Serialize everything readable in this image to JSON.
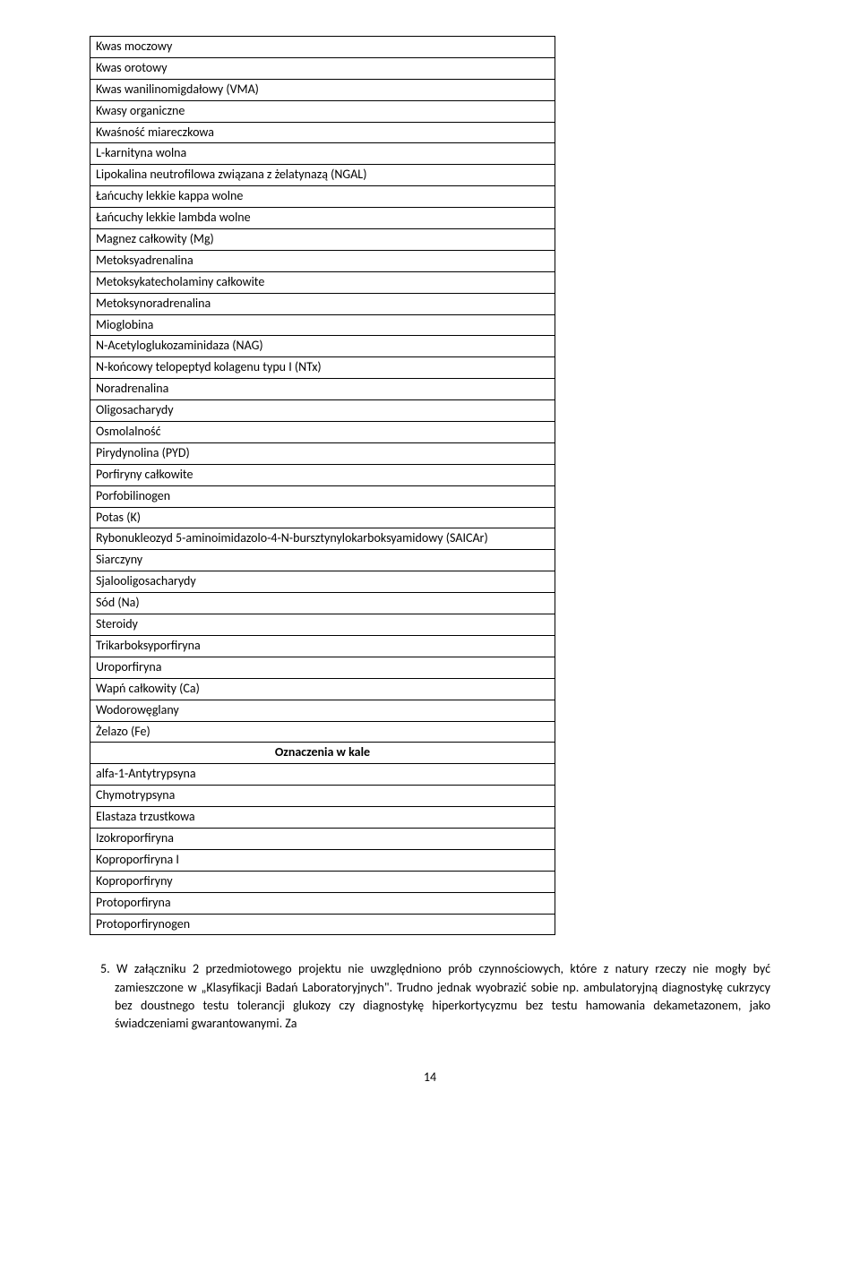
{
  "table": {
    "rows": [
      "Kwas moczowy",
      "Kwas orotowy",
      "Kwas wanilinomigdałowy (VMA)",
      "Kwasy organiczne",
      "Kwaśność miareczkowa",
      "L-karnityna wolna",
      "Lipokalina neutrofilowa związana z żelatynazą (NGAL)",
      "Łańcuchy lekkie kappa wolne",
      "Łańcuchy lekkie lambda wolne",
      "Magnez całkowity (Mg)",
      "Metoksyadrenalina",
      "Metoksykatecholaminy całkowite",
      "Metoksynoradrenalina",
      "Mioglobina",
      "N-Acetyloglukozaminidaza (NAG)",
      "N-końcowy telopeptyd kolagenu typu I (NTx)",
      "Noradrenalina",
      "Oligosacharydy",
      "Osmolalność",
      "Pirydynolina (PYD)",
      "Porfiryny całkowite",
      "Porfobilinogen",
      "Potas (K)",
      "Rybonukleozyd 5-aminoimidazolo-4-N-bursztynylokarboksyamidowy (SAICAr)",
      "Siarczyny",
      "Sjalooligosacharydy",
      "Sód (Na)",
      "Steroidy",
      "Trikarboksyporfiryna",
      "Uroporfiryna",
      "Wapń całkowity (Ca)",
      "Wodorowęglany",
      "Żelazo (Fe)"
    ],
    "section_header": "Oznaczenia w kale",
    "rows2": [
      "alfa-1-Antytrypsyna",
      "Chymotrypsyna",
      "Elastaza trzustkowa",
      "Izokroporfiryna",
      "Koproporfiryna I",
      "Koproporfiryny",
      "Protoporfiryna",
      "Protoporfirynogen"
    ]
  },
  "paragraph": "5. W załączniku 2 przedmiotowego projektu nie uwzględniono prób czynnościowych, które z natury rzeczy nie mogły być zamieszczone w „Klasyfikacji Badań Laboratoryjnych\". Trudno jednak wyobrazić sobie np. ambulatoryjną diagnostykę cukrzycy bez doustnego testu tolerancji glukozy czy diagnostykę hiperkortycyzmu bez testu hamowania dekametazonem, jako świadczeniami gwarantowanymi. Za",
  "page_number": "14"
}
